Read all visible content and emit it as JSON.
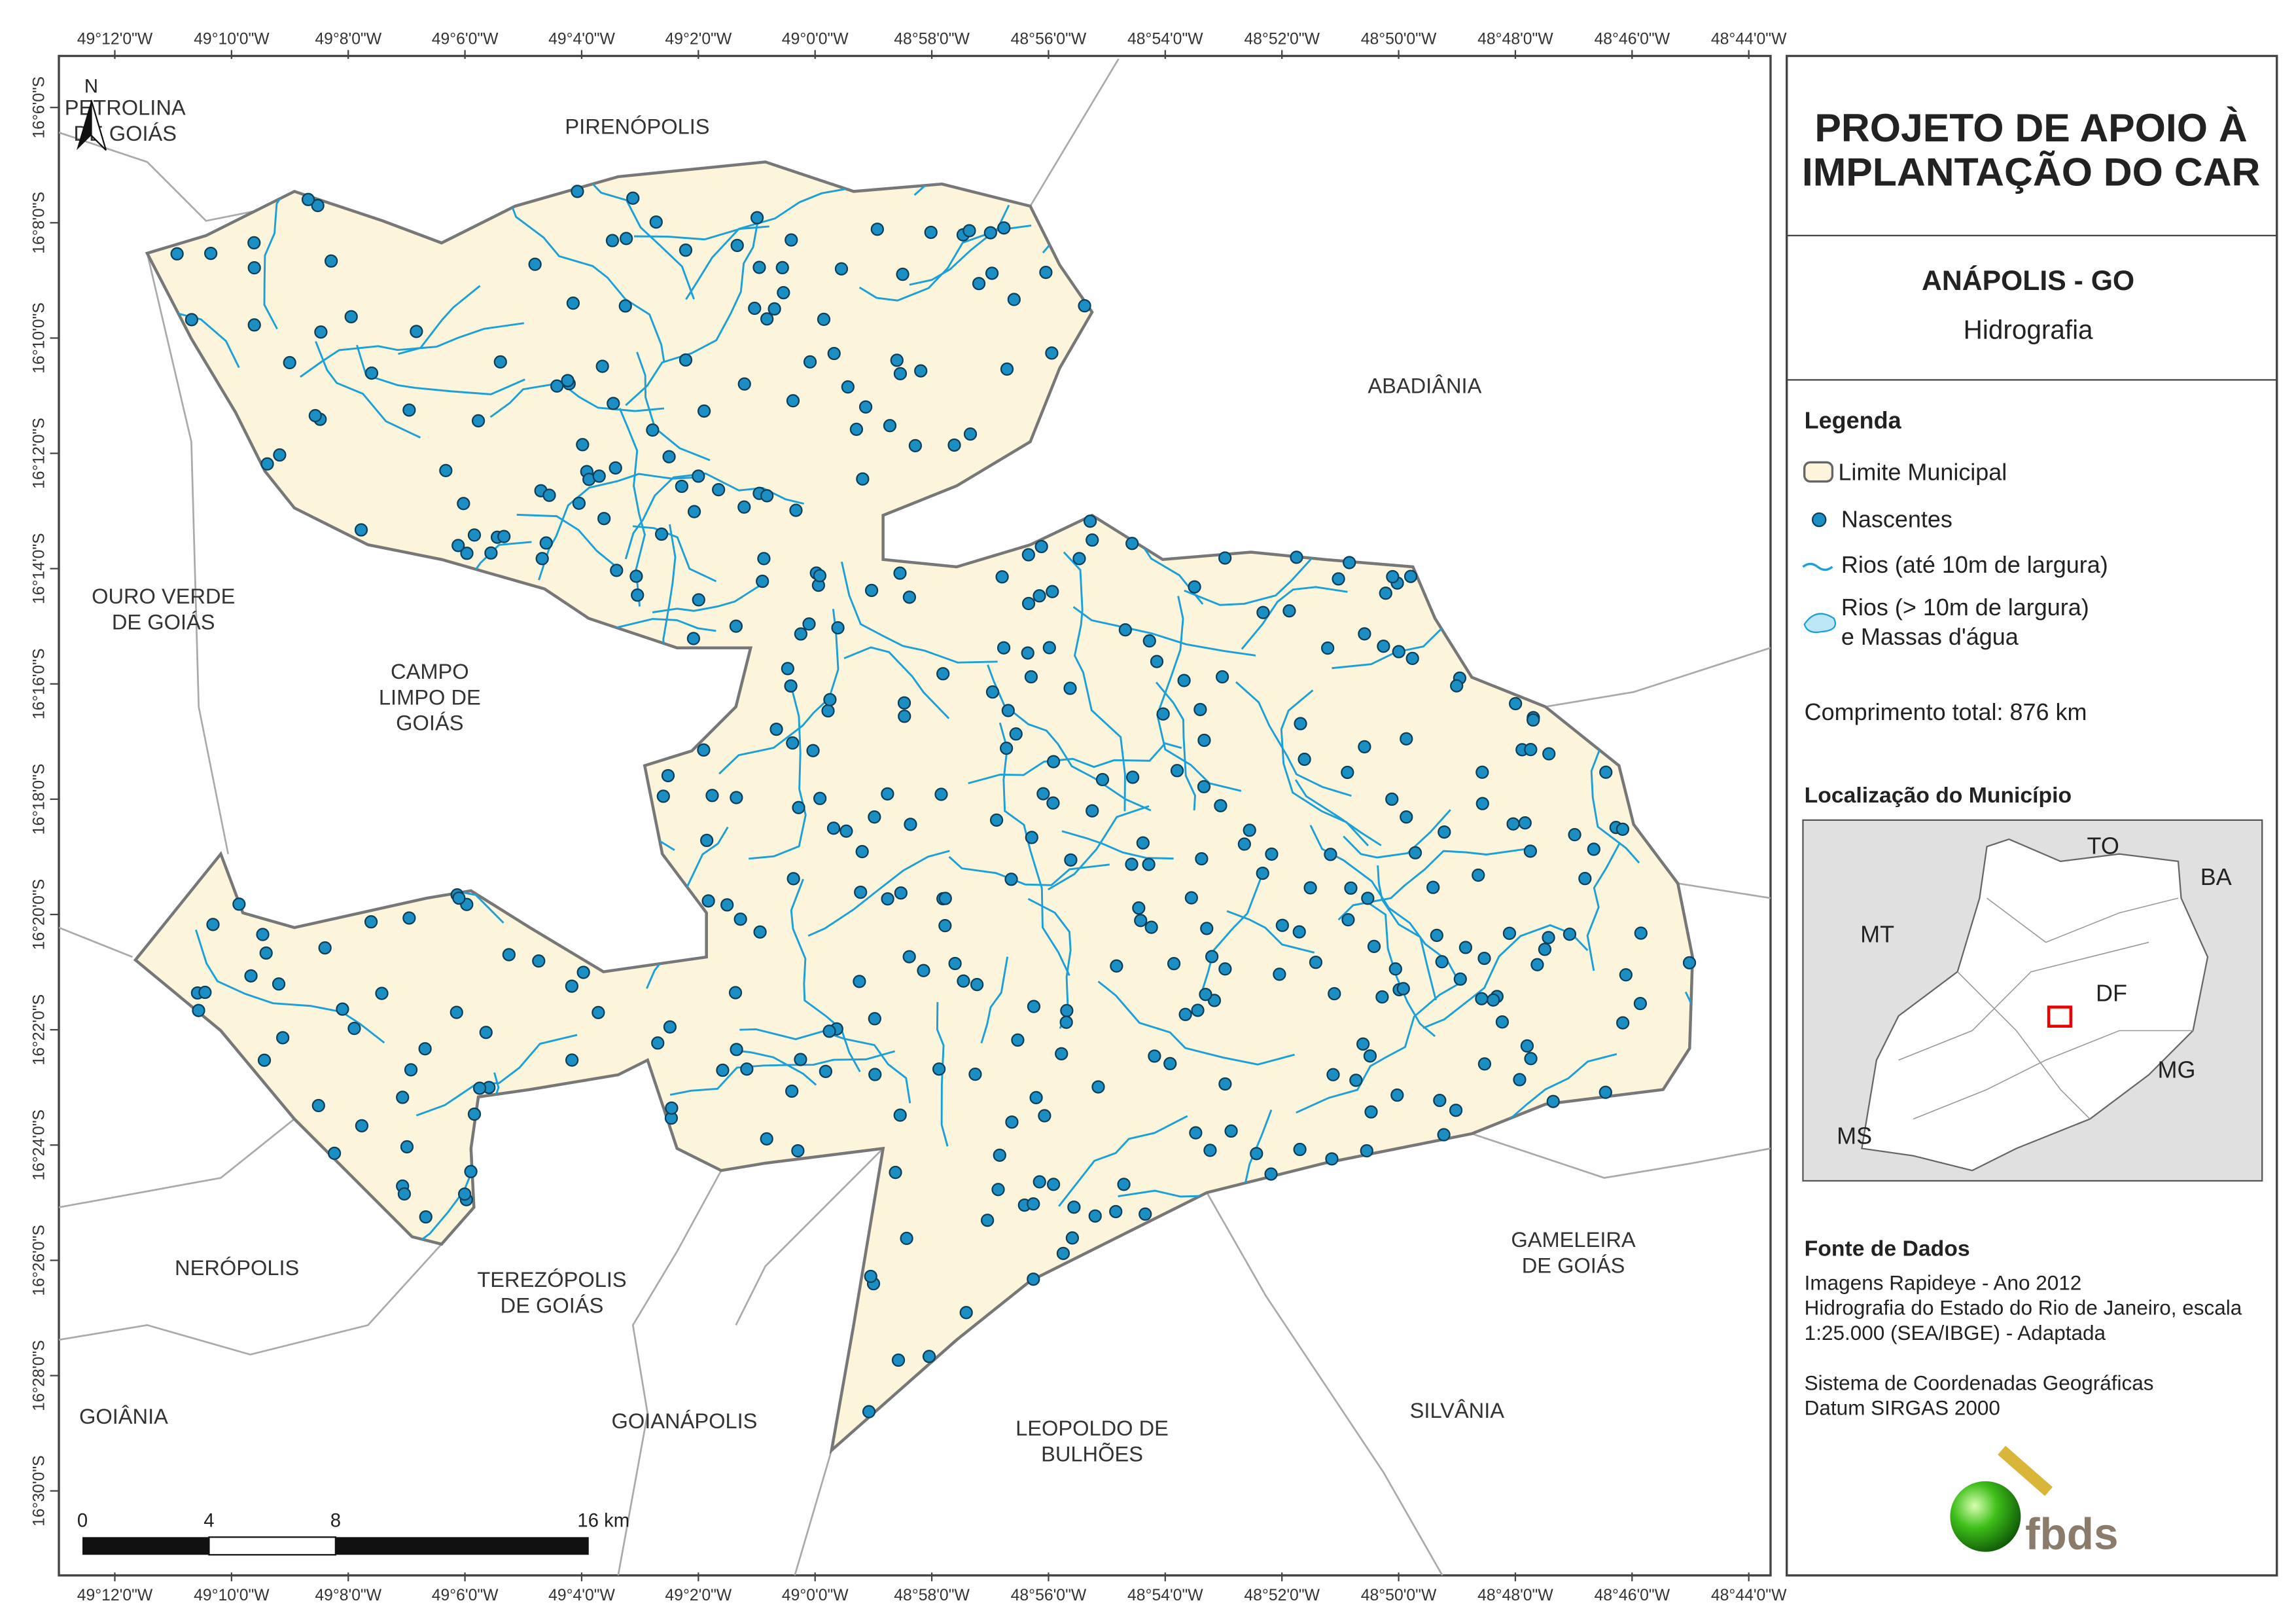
{
  "map": {
    "longitudes": [
      "49°12'0\"W",
      "49°10'0\"W",
      "49°8'0\"W",
      "49°6'0\"W",
      "49°4'0\"W",
      "49°2'0\"W",
      "49°0'0\"W",
      "48°58'0\"W",
      "48°56'0\"W",
      "48°54'0\"W",
      "48°52'0\"W",
      "48°50'0\"W",
      "48°48'0\"W",
      "48°46'0\"W",
      "48°44'0\"W"
    ],
    "latitudes": [
      "16°6'0\"S",
      "16°8'0\"S",
      "16°10'0\"S",
      "16°12'0\"S",
      "16°14'0\"S",
      "16°16'0\"S",
      "16°18'0\"S",
      "16°20'0\"S",
      "16°22'0\"S",
      "16°24'0\"S",
      "16°26'0\"S",
      "16°28'0\"S",
      "16°30'0\"S"
    ],
    "north": "N",
    "neighbors": [
      {
        "lines": [
          "PETROLINA",
          "DE GOIÁS"
        ]
      },
      {
        "lines": [
          "PIRENÓPOLIS"
        ]
      },
      {
        "lines": [
          "ABADIÂNIA"
        ]
      },
      {
        "lines": [
          "OURO VERDE",
          "DE GOIÁS"
        ]
      },
      {
        "lines": [
          "CAMPO",
          "LIMPO DE",
          "GOIÁS"
        ]
      },
      {
        "lines": [
          "NERÓPOLIS"
        ]
      },
      {
        "lines": [
          "TEREZÓPOLIS",
          "DE GOIÁS"
        ]
      },
      {
        "lines": [
          "GAMELEIRA",
          "DE GOIÁS"
        ]
      },
      {
        "lines": [
          "GOIÂNIA"
        ]
      },
      {
        "lines": [
          "GOIANÁPOLIS"
        ]
      },
      {
        "lines": [
          "LEOPOLDO DE",
          "BULHÕES"
        ]
      },
      {
        "lines": [
          "SILVÂNIA"
        ]
      }
    ],
    "scale_bar": [
      "0",
      "4",
      "8",
      "16 km"
    ]
  },
  "panel": {
    "title": [
      "PROJETO DE APOIO À",
      "IMPLANTAÇÃO DO CAR"
    ],
    "municipality": "ANÁPOLIS - GO",
    "theme": "Hidrografia",
    "legend": {
      "title": "Legenda",
      "items": [
        {
          "lines": [
            "Limite Municipal"
          ]
        },
        {
          "lines": [
            "Nascentes"
          ]
        },
        {
          "lines": [
            "Rios (até 10m de largura)"
          ]
        },
        {
          "lines": [
            "Rios (> 10m de largura)",
            "e Massas d'água"
          ]
        }
      ]
    },
    "total_length": "Comprimento total:  876 km",
    "location": {
      "title": "Localização do Município",
      "labels": [
        "TO",
        "BA",
        "MT",
        "DF",
        "MG",
        "MS"
      ]
    },
    "sources": {
      "title": "Fonte de Dados",
      "lines": [
        "Imagens Rapideye - Ano 2012",
        "Hidrografia do Estado do Rio de Janeiro, escala",
        "1:25.000 (SEA/IBGE) - Adaptada",
        "",
        "Sistema de Coordenadas Geográficas",
        "Datum SIRGAS 2000"
      ]
    },
    "logo": "fbds"
  }
}
